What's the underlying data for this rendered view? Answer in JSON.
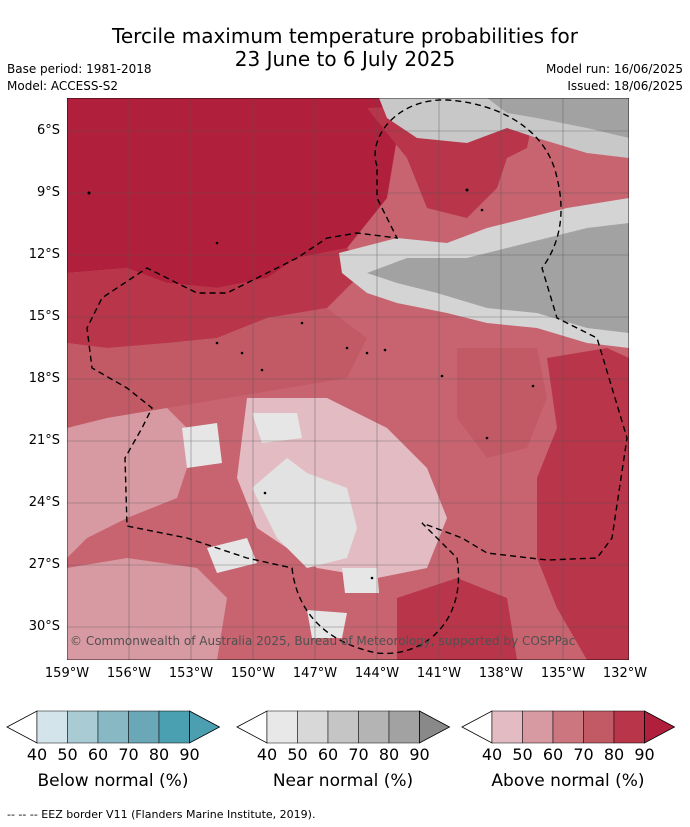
{
  "title": {
    "line1": "Tercile maximum temperature probabilities for",
    "line2": "23 June to 6 July 2025"
  },
  "meta": {
    "base_period": "Base period: 1981-2018",
    "model": "Model: ACCESS-S2",
    "model_run": "Model run: 16/06/2025",
    "issued": "Issued: 18/06/2025"
  },
  "map": {
    "lat_labels": [
      "6°S",
      "9°S",
      "12°S",
      "15°S",
      "18°S",
      "21°S",
      "24°S",
      "27°S",
      "30°S"
    ],
    "lon_labels": [
      "159°W",
      "156°W",
      "153°W",
      "150°W",
      "147°W",
      "144°W",
      "141°W",
      "138°W",
      "135°W",
      "132°W"
    ],
    "copyright": "© Commonwealth of Australia 2025, Bureau of Meteorology, supported by COSPPac"
  },
  "colorbars": [
    {
      "label": "Below normal (%)",
      "ticks": [
        "40",
        "50",
        "60",
        "70",
        "80",
        "90"
      ],
      "colors": [
        "#d3e4ea",
        "#a9cbd3",
        "#88b8c4",
        "#6aa8b8",
        "#4aa0b0",
        "#4c9fb0"
      ]
    },
    {
      "label": "Near normal (%)",
      "ticks": [
        "40",
        "50",
        "60",
        "70",
        "80",
        "90"
      ],
      "colors": [
        "#e8e8e8",
        "#d8d8d8",
        "#c5c5c5",
        "#b4b4b4",
        "#a2a2a2",
        "#898989"
      ]
    },
    {
      "label": "Above normal (%)",
      "ticks": [
        "40",
        "50",
        "60",
        "70",
        "80",
        "90"
      ],
      "colors": [
        "#e3bcc3",
        "#d89aa2",
        "#cc7680",
        "#c25a66",
        "#b8354a",
        "#b0203c"
      ]
    }
  ],
  "footer": "--  --  -- EEZ border V11 (Flanders Marine Institute, 2019)."
}
